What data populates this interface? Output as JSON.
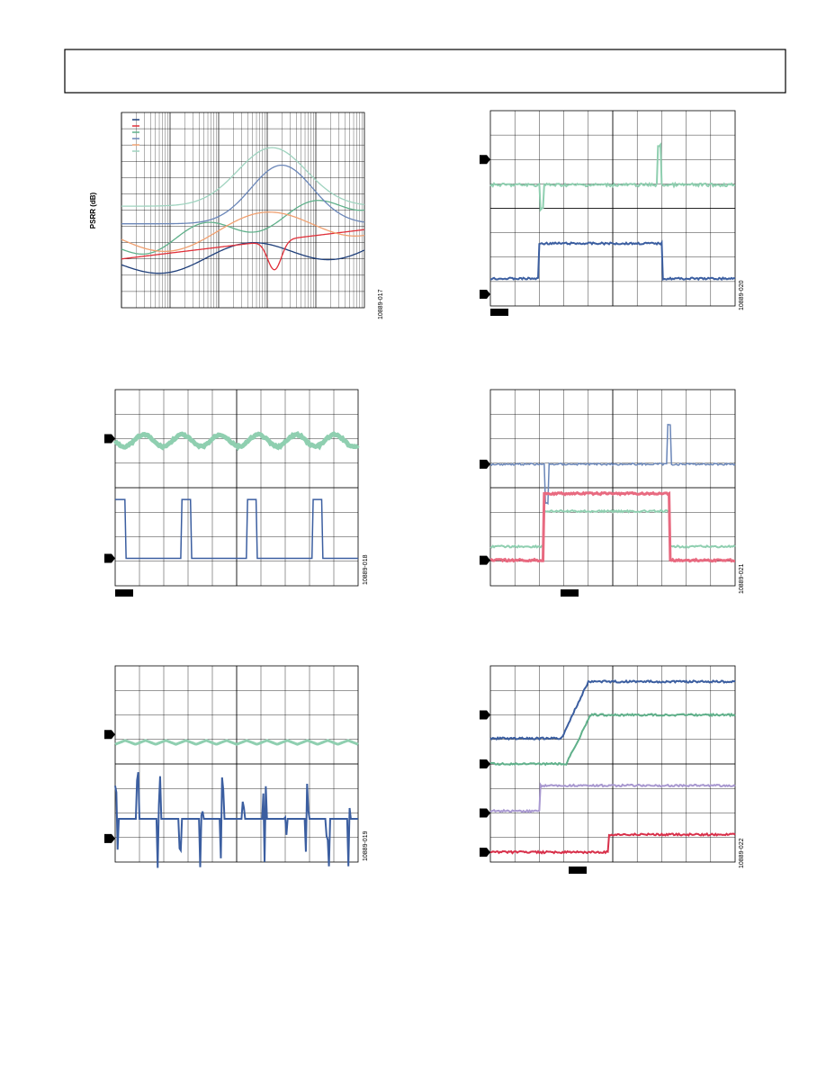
{
  "figures": [
    {
      "y_axis_label": "PSRR (dB)",
      "figure_id": "10889-017"
    },
    {
      "figure_id": "10889-020"
    },
    {
      "figure_id": "10889-018"
    },
    {
      "figure_id": "10889-021"
    },
    {
      "figure_id": "10889-019"
    },
    {
      "figure_id": "10889-022"
    }
  ]
}
